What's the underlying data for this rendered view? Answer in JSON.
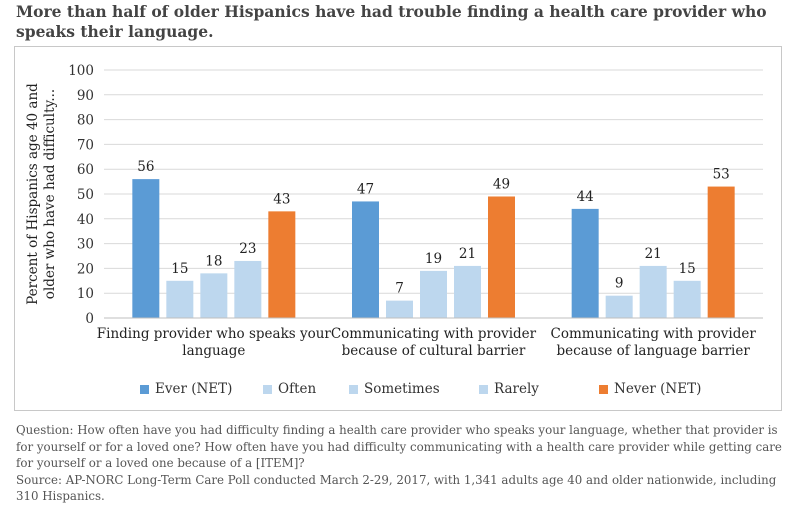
{
  "title": "More than half of older Hispanics have had trouble finding a health care provider who speaks their language.",
  "notes": {
    "question": "Question: How often have you had difficulty finding a health care provider who speaks your language, whether that provider is for yourself or for a loved one? How often have you had difficulty communicating with a health care provider while getting care for yourself or a loved one because of a [ITEM]?",
    "source": "Source: AP-NORC Long-Term Care Poll conducted March 2-29, 2017, with 1,341 adults age 40 and older nationwide, including 310 Hispanics."
  },
  "chart_data": {
    "type": "bar",
    "categories": [
      [
        "Finding provider who speaks your",
        "language"
      ],
      [
        "Communicating with provider",
        "because of cultural barrier"
      ],
      [
        "Communicating with provider",
        "because of language barrier"
      ]
    ],
    "ylabel": [
      "Percent of Hispanics age 40 and",
      "older who have  had difficulty..."
    ],
    "ylim": [
      0,
      100
    ],
    "yticks": [
      0,
      10,
      20,
      30,
      40,
      50,
      60,
      70,
      80,
      90,
      100
    ],
    "grid": true,
    "legend_position": "bottom",
    "series": [
      {
        "name": "Ever (NET)",
        "color": "#5b9bd5",
        "values": [
          56,
          47,
          44
        ]
      },
      {
        "name": "Often",
        "color": "#bdd7ee",
        "values": [
          15,
          7,
          9
        ]
      },
      {
        "name": "Sometimes",
        "color": "#bdd7ee",
        "values": [
          18,
          19,
          21
        ]
      },
      {
        "name": "Rarely",
        "color": "#bdd7ee",
        "values": [
          23,
          21,
          15
        ]
      },
      {
        "name": "Never (NET)",
        "color": "#ed7d31",
        "values": [
          43,
          49,
          53
        ]
      }
    ]
  }
}
